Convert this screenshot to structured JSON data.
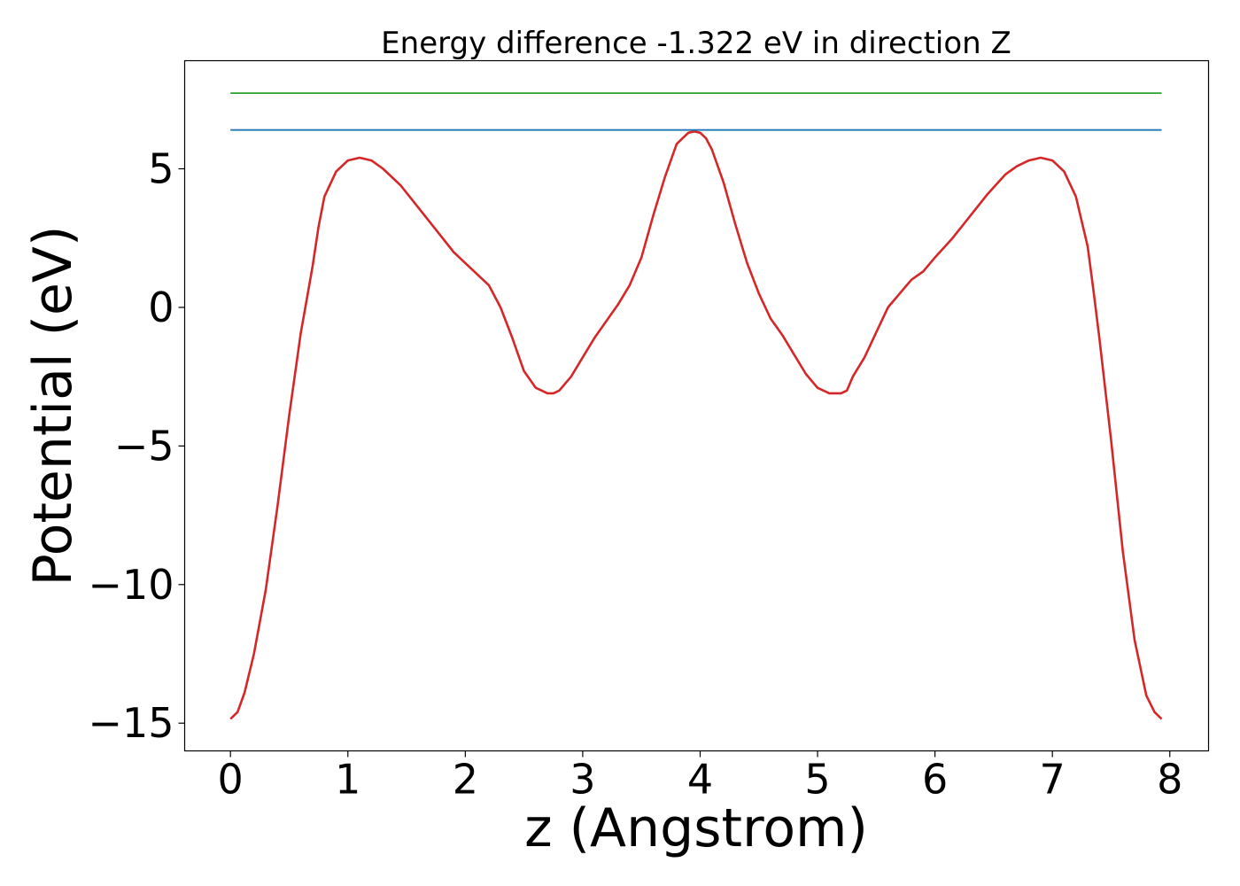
{
  "chart_data": {
    "type": "line",
    "title": "Energy difference -1.322 eV in direction Z",
    "xlabel": "z (Angstrom)",
    "ylabel": "Potential (eV)",
    "xlim": [
      -0.39,
      8.33
    ],
    "ylim": [
      -16.0,
      8.9
    ],
    "grid": false,
    "x_ticks": [
      0,
      1,
      2,
      3,
      4,
      5,
      6,
      7,
      8
    ],
    "x_tick_labels": [
      "0",
      "1",
      "2",
      "3",
      "4",
      "5",
      "6",
      "7",
      "8"
    ],
    "y_ticks": [
      -15,
      -10,
      -5,
      0,
      5
    ],
    "y_tick_labels": [
      "−15",
      "−10",
      "−5",
      "0",
      "5"
    ],
    "series": [
      {
        "color": "#d62728",
        "x": [
          0,
          0.06,
          0.12,
          0.2,
          0.3,
          0.4,
          0.5,
          0.6,
          0.65,
          0.7,
          0.75,
          0.8,
          0.9,
          1.0,
          1.1,
          1.2,
          1.3,
          1.45,
          1.6,
          1.75,
          1.9,
          2.0,
          2.1,
          2.2,
          2.3,
          2.4,
          2.5,
          2.6,
          2.7,
          2.75,
          2.8,
          2.9,
          3.0,
          3.1,
          3.2,
          3.3,
          3.4,
          3.5,
          3.6,
          3.7,
          3.8,
          3.9,
          3.95,
          4.0,
          4.05,
          4.1,
          4.2,
          4.3,
          4.4,
          4.5,
          4.6,
          4.7,
          4.8,
          4.9,
          5.0,
          5.1,
          5.2,
          5.25,
          5.3,
          5.4,
          5.5,
          5.6,
          5.7,
          5.8,
          5.9,
          6.0,
          6.15,
          6.3,
          6.45,
          6.6,
          6.7,
          6.8,
          6.9,
          7.0,
          7.1,
          7.2,
          7.3,
          7.35,
          7.4,
          7.5,
          7.6,
          7.7,
          7.8,
          7.87,
          7.93
        ],
        "values": [
          -14.85,
          -14.6,
          -13.9,
          -12.5,
          -10.2,
          -7.2,
          -3.9,
          -0.9,
          0.3,
          1.5,
          2.9,
          4.0,
          4.9,
          5.3,
          5.4,
          5.3,
          5.0,
          4.4,
          3.6,
          2.8,
          2.0,
          1.6,
          1.2,
          0.8,
          0.0,
          -1.1,
          -2.3,
          -2.9,
          -3.1,
          -3.1,
          -3.0,
          -2.5,
          -1.8,
          -1.1,
          -0.5,
          0.1,
          0.8,
          1.8,
          3.3,
          4.7,
          5.9,
          6.3,
          6.35,
          6.3,
          6.1,
          5.7,
          4.5,
          3.0,
          1.6,
          0.5,
          -0.4,
          -1.0,
          -1.7,
          -2.4,
          -2.9,
          -3.1,
          -3.1,
          -3.0,
          -2.5,
          -1.8,
          -0.9,
          0.0,
          0.5,
          1.0,
          1.3,
          1.8,
          2.5,
          3.3,
          4.1,
          4.8,
          5.1,
          5.3,
          5.4,
          5.3,
          4.9,
          4.0,
          2.2,
          0.6,
          -1.1,
          -4.8,
          -8.8,
          -12.0,
          -14.0,
          -14.6,
          -14.85
        ]
      },
      {
        "color": "#1f77b4",
        "x": [
          0,
          7.93
        ],
        "values": [
          6.4,
          6.4
        ]
      },
      {
        "color": "#2ca02c",
        "x": [
          0,
          7.93
        ],
        "values": [
          7.73,
          7.73
        ]
      }
    ]
  }
}
